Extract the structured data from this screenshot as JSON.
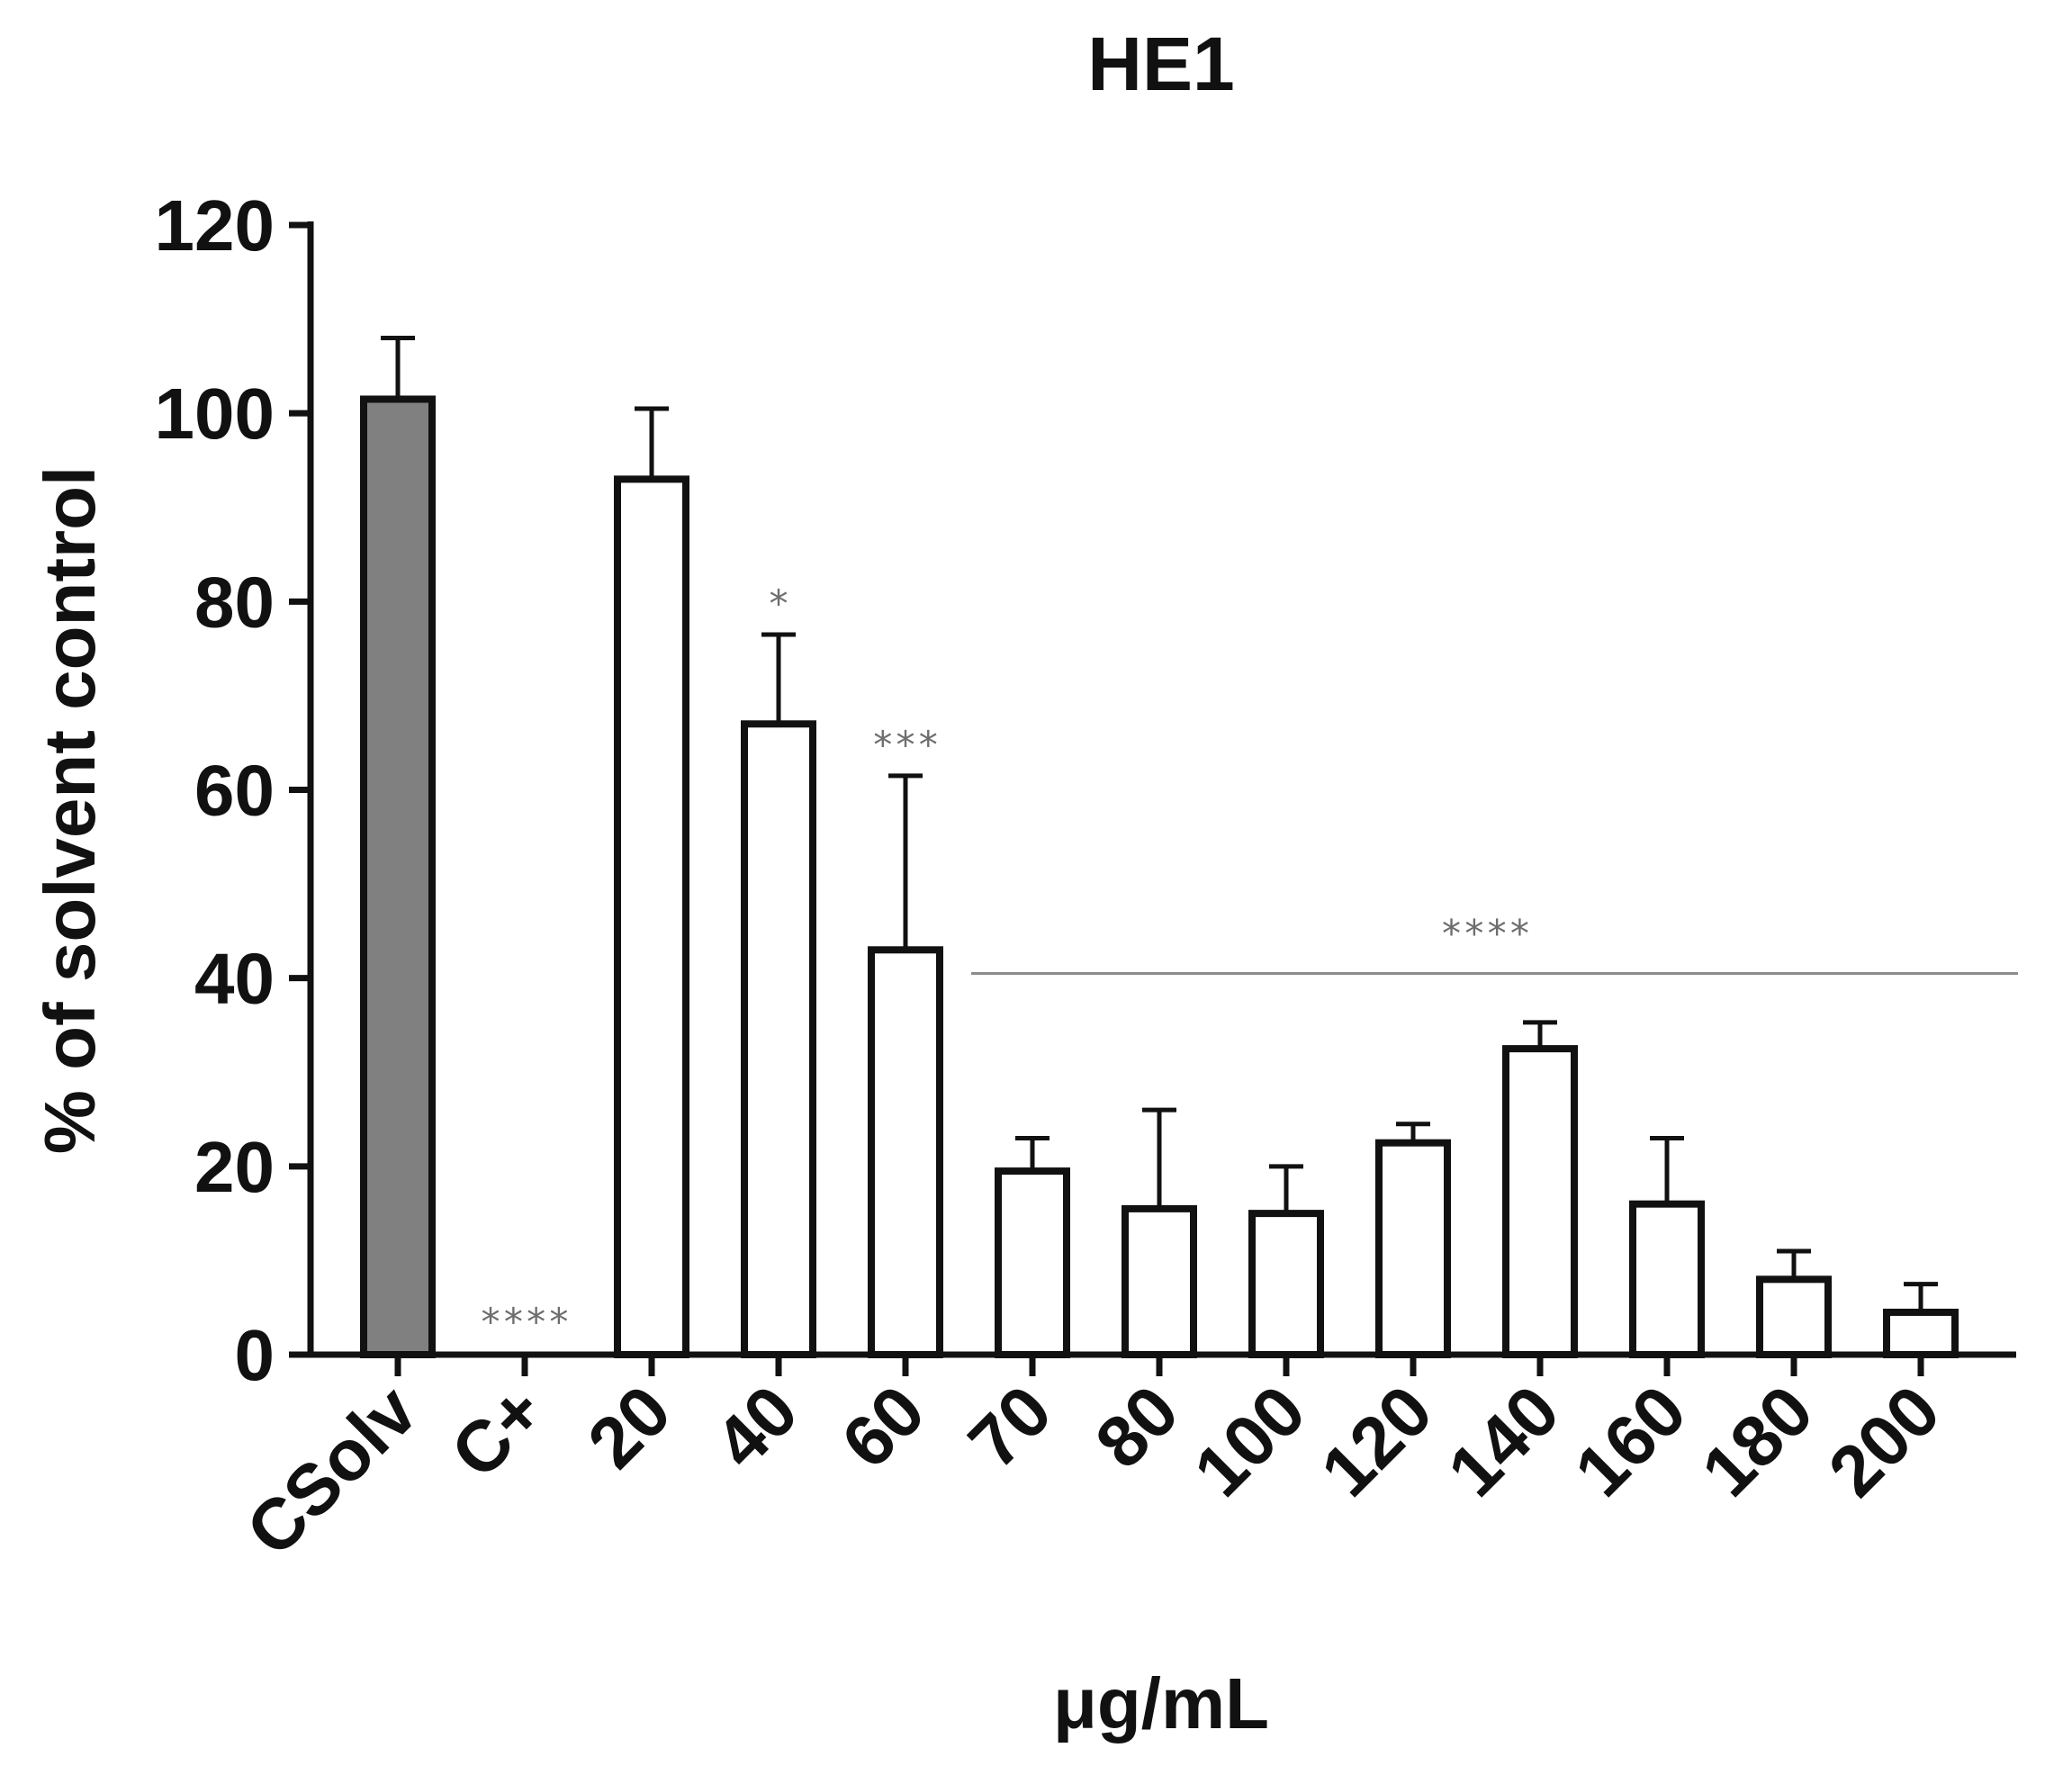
{
  "chart_data": {
    "type": "bar",
    "title": "HE1",
    "xlabel": "μg/mL",
    "ylabel": "% of solvent control",
    "ylim": [
      0,
      120
    ],
    "yticks": [
      0,
      20,
      40,
      60,
      80,
      100,
      120
    ],
    "grid": false,
    "categories": [
      "CSolv",
      "C+",
      "20",
      "40",
      "60",
      "70",
      "80",
      "100",
      "120",
      "140",
      "160",
      "180",
      "200"
    ],
    "values": [
      101.5,
      0,
      93,
      67,
      43,
      19.5,
      15.5,
      15,
      22.5,
      32.5,
      16,
      8,
      4.5
    ],
    "errors": [
      6.5,
      0,
      7.5,
      9.5,
      18.5,
      3.5,
      10.5,
      5,
      2,
      2.8,
      7,
      3,
      3
    ],
    "colors": {
      "control_bar": "#808080",
      "sample_bar": "#ffffff",
      "outline": "#111111",
      "annotation": "#6e6e6e"
    },
    "annotations": [
      {
        "category": "C+",
        "text": "****"
      },
      {
        "category": "40",
        "text": "*"
      },
      {
        "category": "60",
        "text": "***"
      },
      {
        "from": "70",
        "to": "200",
        "text": "****",
        "y": 40.5
      }
    ]
  }
}
